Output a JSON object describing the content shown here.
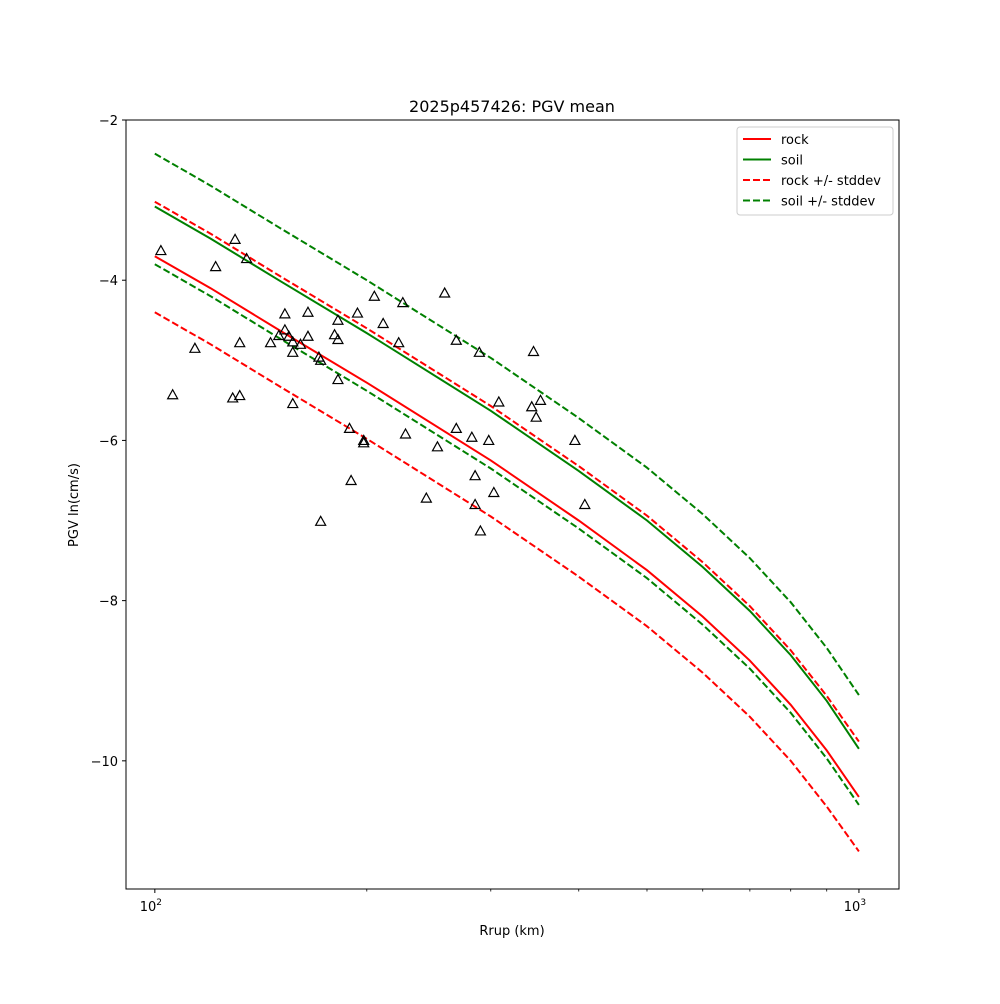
{
  "chart_data": {
    "type": "scatter",
    "title": "2025p457426: PGV mean",
    "xlabel": "Rrup (km)",
    "ylabel": "PGV ln(cm/s)",
    "xscale": "log",
    "xlim": [
      91,
      1140
    ],
    "ylim": [
      -11.6,
      -2.0
    ],
    "xticks": [
      {
        "value": 100,
        "base": "10",
        "exp": "2"
      },
      {
        "value": 1000,
        "base": "10",
        "exp": "3"
      }
    ],
    "yticks": [
      {
        "value": -2,
        "label": "−2"
      },
      {
        "value": -4,
        "label": "−4"
      },
      {
        "value": -6,
        "label": "−6"
      },
      {
        "value": -8,
        "label": "−8"
      },
      {
        "value": -10,
        "label": "−10"
      }
    ],
    "grid": false,
    "legend_position": "top-right",
    "curve_x": [
      100,
      120,
      150,
      200,
      300,
      400,
      500,
      600,
      700,
      800,
      900,
      1000
    ],
    "series": [
      {
        "name": "rock",
        "color": "#ff0000",
        "style": "solid",
        "legend": true,
        "y": [
          -3.7,
          -4.1,
          -4.62,
          -5.28,
          -6.25,
          -7.0,
          -7.62,
          -8.2,
          -8.75,
          -9.3,
          -9.87,
          -10.45
        ]
      },
      {
        "name": "soil",
        "color": "#008000",
        "style": "solid",
        "legend": true,
        "y": [
          -3.08,
          -3.48,
          -4.0,
          -4.66,
          -5.63,
          -6.38,
          -7.0,
          -7.58,
          -8.13,
          -8.68,
          -9.25,
          -9.85
        ]
      },
      {
        "name": "rock +/- stddev",
        "color": "#ff0000",
        "style": "dashed",
        "legend": true,
        "y": [
          -3.02,
          -3.42,
          -3.94,
          -4.6,
          -5.57,
          -6.32,
          -6.94,
          -7.52,
          -8.07,
          -8.62,
          -9.19,
          -9.76
        ]
      },
      {
        "name": "rock-minus",
        "color": "#ff0000",
        "style": "dashed",
        "legend": false,
        "y": [
          -4.4,
          -4.8,
          -5.32,
          -5.98,
          -6.95,
          -7.7,
          -8.32,
          -8.9,
          -9.45,
          -10.0,
          -10.57,
          -11.13
        ]
      },
      {
        "name": "soil +/- stddev",
        "color": "#008000",
        "style": "dashed",
        "legend": true,
        "y": [
          -2.42,
          -2.82,
          -3.34,
          -4.0,
          -4.97,
          -5.72,
          -6.34,
          -6.92,
          -7.47,
          -8.02,
          -8.59,
          -9.18
        ]
      },
      {
        "name": "soil-minus",
        "color": "#008000",
        "style": "dashed",
        "legend": false,
        "y": [
          -3.8,
          -4.2,
          -4.72,
          -5.38,
          -6.35,
          -7.1,
          -7.72,
          -8.3,
          -8.85,
          -9.4,
          -9.97,
          -10.55
        ]
      }
    ],
    "observations": {
      "marker": "triangle",
      "color": "#000000",
      "points": [
        [
          102,
          -3.63
        ],
        [
          106,
          -5.43
        ],
        [
          114,
          -4.85
        ],
        [
          122,
          -3.83
        ],
        [
          129,
          -5.47
        ],
        [
          130,
          -3.49
        ],
        [
          132,
          -4.78
        ],
        [
          132,
          -5.44
        ],
        [
          135,
          -3.73
        ],
        [
          146,
          -4.78
        ],
        [
          150,
          -4.69
        ],
        [
          153,
          -4.42
        ],
        [
          153,
          -4.62
        ],
        [
          155,
          -4.7
        ],
        [
          157,
          -4.77
        ],
        [
          157,
          -4.9
        ],
        [
          157,
          -5.54
        ],
        [
          161,
          -4.8
        ],
        [
          165,
          -4.7
        ],
        [
          165,
          -4.4
        ],
        [
          171,
          -4.96
        ],
        [
          172,
          -5.0
        ],
        [
          172,
          -7.01
        ],
        [
          180,
          -4.68
        ],
        [
          182,
          -4.5
        ],
        [
          182,
          -4.74
        ],
        [
          182,
          -5.24
        ],
        [
          189,
          -5.85
        ],
        [
          190,
          -6.5
        ],
        [
          194,
          -4.41
        ],
        [
          198,
          -6.0
        ],
        [
          198,
          -6.03
        ],
        [
          205,
          -4.2
        ],
        [
          211,
          -4.54
        ],
        [
          222,
          -4.78
        ],
        [
          225,
          -4.28
        ],
        [
          227,
          -5.92
        ],
        [
          243,
          -6.72
        ],
        [
          252,
          -6.08
        ],
        [
          258,
          -4.16
        ],
        [
          268,
          -4.75
        ],
        [
          268,
          -5.85
        ],
        [
          282,
          -5.96
        ],
        [
          285,
          -6.44
        ],
        [
          285,
          -6.8
        ],
        [
          289,
          -4.9
        ],
        [
          290,
          -7.13
        ],
        [
          298,
          -6.0
        ],
        [
          303,
          -6.65
        ],
        [
          308,
          -5.52
        ],
        [
          343,
          -5.58
        ],
        [
          345,
          -4.89
        ],
        [
          348,
          -5.71
        ],
        [
          353,
          -5.5
        ],
        [
          395,
          -6.0
        ],
        [
          408,
          -6.8
        ]
      ]
    }
  }
}
